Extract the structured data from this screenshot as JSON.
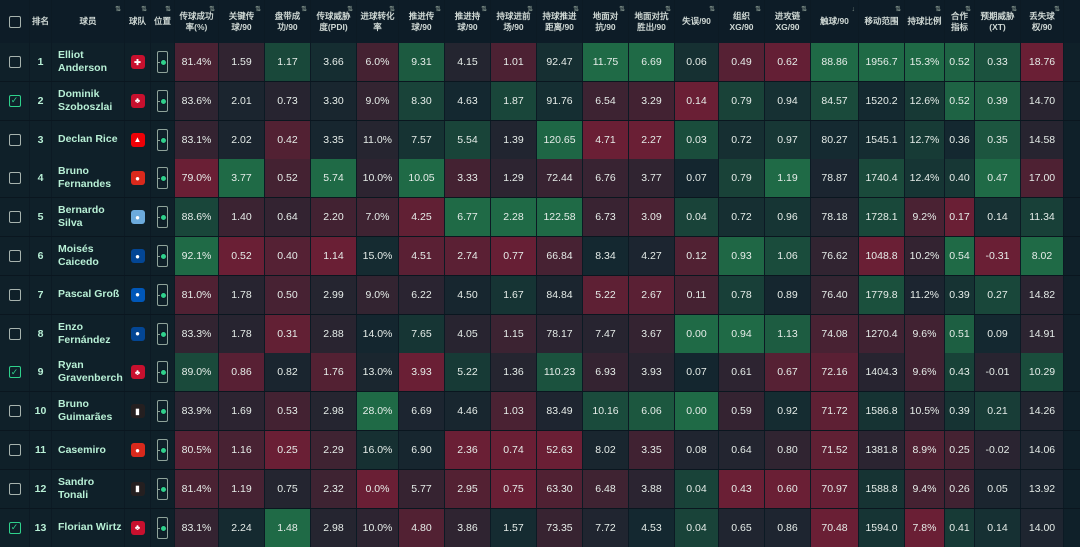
{
  "headers": [
    "",
    "排名",
    "球员",
    "球队",
    "位置",
    "传球成功率(%)",
    "关键传球/90",
    "盘带成功/90",
    "传球威胁度(PDI)",
    "进球转化率",
    "推进传球/90",
    "推进持球/90",
    "持球进前场/90",
    "持球推进距离/90",
    "地面对抗/90",
    "地面对抗胜出/90",
    "失误/90",
    "组织XG/90",
    "进攻链XG/90",
    "触球/90",
    "移动范围",
    "持球比例",
    "合作指标",
    "预期威胁(XT)",
    "丢失球权/90"
  ],
  "sorted_column": "触球/90",
  "players": [
    {
      "rank": "1",
      "name": "Elliot Anderson",
      "club": "Nottingham Forest",
      "checked": false,
      "v": [
        "81.4%",
        "1.59",
        "1.17",
        "3.66",
        "6.0%",
        "9.31",
        "4.15",
        "1.01",
        "92.47",
        "11.75",
        "6.69",
        "0.06",
        "0.49",
        "0.62",
        "88.86",
        "1956.7",
        "15.3%",
        "0.52",
        "0.33",
        "18.76"
      ]
    },
    {
      "rank": "2",
      "name": "Dominik Szoboszlai",
      "club": "Liverpool",
      "checked": true,
      "v": [
        "83.6%",
        "2.01",
        "0.73",
        "3.30",
        "9.0%",
        "8.30",
        "4.63",
        "1.87",
        "91.76",
        "6.54",
        "3.29",
        "0.14",
        "0.79",
        "0.94",
        "84.57",
        "1520.2",
        "12.6%",
        "0.52",
        "0.39",
        "14.70"
      ]
    },
    {
      "rank": "3",
      "name": "Declan Rice",
      "club": "Arsenal",
      "checked": false,
      "v": [
        "83.1%",
        "2.02",
        "0.42",
        "3.35",
        "11.0%",
        "7.57",
        "5.54",
        "1.39",
        "120.65",
        "4.71",
        "2.27",
        "0.03",
        "0.72",
        "0.97",
        "80.27",
        "1545.1",
        "12.7%",
        "0.36",
        "0.35",
        "14.58"
      ]
    },
    {
      "rank": "4",
      "name": "Bruno Fernandes",
      "club": "Manchester United",
      "checked": false,
      "v": [
        "79.0%",
        "3.77",
        "0.52",
        "5.74",
        "10.0%",
        "10.05",
        "3.33",
        "1.29",
        "72.44",
        "6.76",
        "3.77",
        "0.07",
        "0.79",
        "1.19",
        "78.87",
        "1740.4",
        "12.4%",
        "0.40",
        "0.47",
        "17.00"
      ]
    },
    {
      "rank": "5",
      "name": "Bernardo Silva",
      "club": "Manchester City",
      "checked": false,
      "v": [
        "88.6%",
        "1.40",
        "0.64",
        "2.20",
        "7.0%",
        "4.25",
        "6.77",
        "2.28",
        "122.58",
        "6.73",
        "3.09",
        "0.04",
        "0.72",
        "0.96",
        "78.18",
        "1728.1",
        "9.2%",
        "0.17",
        "0.14",
        "11.34"
      ]
    },
    {
      "rank": "6",
      "name": "Moisés Caicedo",
      "club": "Chelsea",
      "checked": false,
      "v": [
        "92.1%",
        "0.52",
        "0.40",
        "1.14",
        "15.0%",
        "4.51",
        "2.74",
        "0.77",
        "66.84",
        "8.34",
        "4.27",
        "0.12",
        "0.93",
        "1.06",
        "76.62",
        "1048.8",
        "10.2%",
        "0.54",
        "-0.31",
        "8.02"
      ]
    },
    {
      "rank": "7",
      "name": "Pascal Groß",
      "club": "Brighton",
      "checked": false,
      "v": [
        "81.0%",
        "1.78",
        "0.50",
        "2.99",
        "9.0%",
        "6.22",
        "4.50",
        "1.67",
        "84.84",
        "5.22",
        "2.67",
        "0.11",
        "0.78",
        "0.89",
        "76.40",
        "1779.8",
        "11.2%",
        "0.39",
        "0.27",
        "14.82"
      ]
    },
    {
      "rank": "8",
      "name": "Enzo Fernández",
      "club": "Chelsea",
      "checked": false,
      "v": [
        "83.3%",
        "1.78",
        "0.31",
        "2.88",
        "14.0%",
        "7.65",
        "4.05",
        "1.15",
        "78.17",
        "7.47",
        "3.67",
        "0.00",
        "0.94",
        "1.13",
        "74.08",
        "1270.4",
        "9.6%",
        "0.51",
        "0.09",
        "14.91"
      ]
    },
    {
      "rank": "9",
      "name": "Ryan Gravenberch",
      "club": "Liverpool",
      "checked": true,
      "v": [
        "89.0%",
        "0.86",
        "0.82",
        "1.76",
        "13.0%",
        "3.93",
        "5.22",
        "1.36",
        "110.23",
        "6.93",
        "3.93",
        "0.07",
        "0.61",
        "0.67",
        "72.16",
        "1404.3",
        "9.6%",
        "0.43",
        "-0.01",
        "10.29"
      ]
    },
    {
      "rank": "10",
      "name": "Bruno Guimarães",
      "club": "Newcastle",
      "checked": false,
      "v": [
        "83.9%",
        "1.69",
        "0.53",
        "2.98",
        "28.0%",
        "6.69",
        "4.46",
        "1.03",
        "83.49",
        "10.16",
        "6.06",
        "0.00",
        "0.59",
        "0.92",
        "71.72",
        "1586.8",
        "10.5%",
        "0.39",
        "0.21",
        "14.26"
      ]
    },
    {
      "rank": "11",
      "name": "Casemiro",
      "club": "Manchester United",
      "checked": false,
      "v": [
        "80.5%",
        "1.16",
        "0.25",
        "2.29",
        "16.0%",
        "6.90",
        "2.36",
        "0.74",
        "52.63",
        "8.02",
        "3.35",
        "0.08",
        "0.64",
        "0.80",
        "71.52",
        "1381.8",
        "8.9%",
        "0.25",
        "-0.02",
        "14.06"
      ]
    },
    {
      "rank": "12",
      "name": "Sandro Tonali",
      "club": "Newcastle",
      "checked": false,
      "v": [
        "81.4%",
        "1.19",
        "0.75",
        "2.32",
        "0.0%",
        "5.77",
        "2.95",
        "0.75",
        "63.30",
        "6.48",
        "3.88",
        "0.04",
        "0.43",
        "0.60",
        "70.97",
        "1588.8",
        "9.4%",
        "0.26",
        "0.05",
        "13.92"
      ]
    },
    {
      "rank": "13",
      "name": "Florian Wirtz",
      "club": "Liverpool",
      "checked": true,
      "v": [
        "83.1%",
        "2.24",
        "1.48",
        "2.98",
        "10.0%",
        "4.80",
        "3.86",
        "1.57",
        "73.35",
        "7.72",
        "4.53",
        "0.04",
        "0.65",
        "0.86",
        "70.48",
        "1594.0",
        "7.8%",
        "0.41",
        "0.14",
        "14.00"
      ]
    }
  ],
  "colors": {
    "green_high": "#1f6a46",
    "red_high": "#6a1f35",
    "neutral": "#14262f",
    "accent": "#2fd18c"
  }
}
